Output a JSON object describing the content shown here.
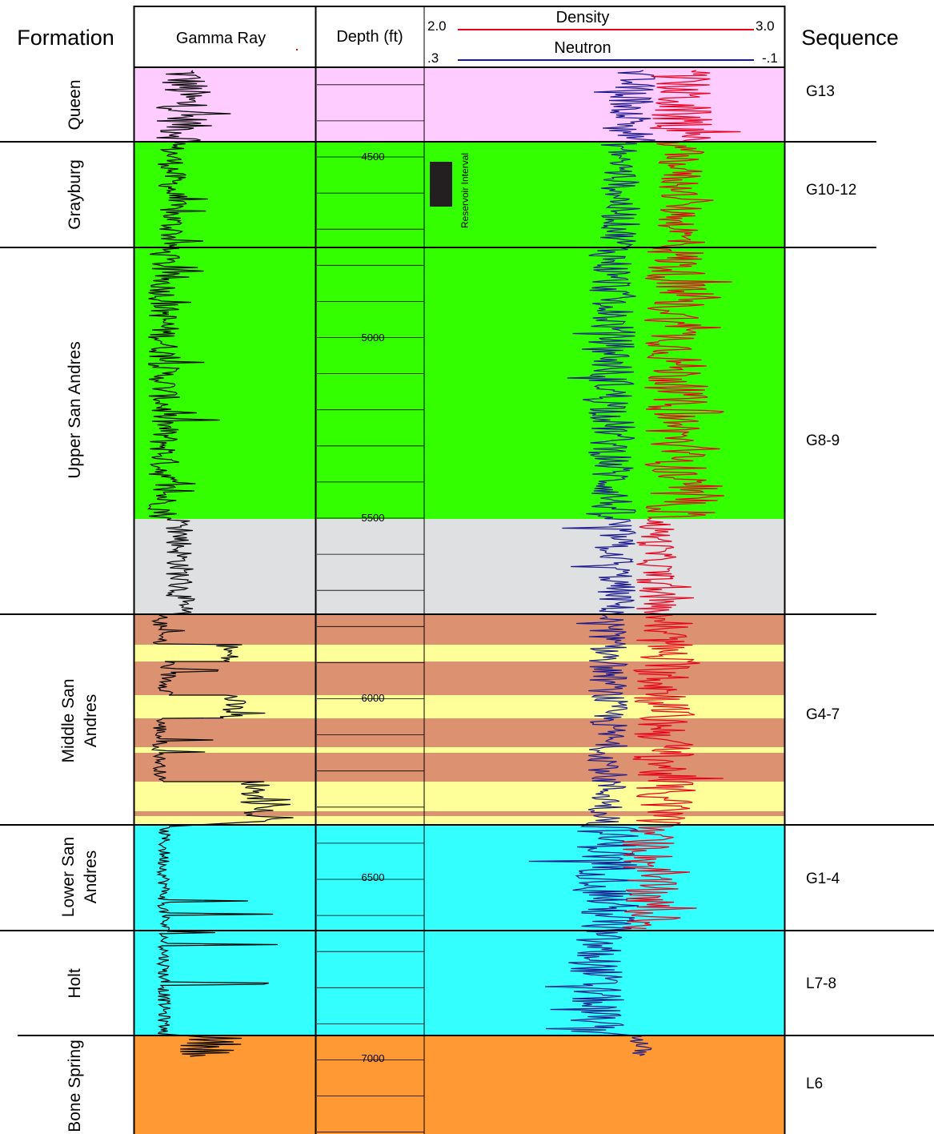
{
  "header": {
    "formation_title": "Formation",
    "gamma_title": "Gamma Ray",
    "depth_title": "Depth (ft)",
    "sequence_title": "Sequence",
    "density_label": "Density",
    "density_min": "2.0",
    "density_max": "3.0",
    "neutron_label": "Neutron",
    "neutron_min": ".3",
    "neutron_max": "-.1"
  },
  "colors": {
    "queen": "#ffccff",
    "green": "#33ff00",
    "gray": "#dfe0e2",
    "brown": "#dc9270",
    "yellow": "#ffff99",
    "cyan": "#33ffff",
    "orange": "#ff9933",
    "density_curve": "#e8001c",
    "neutron_curve": "#1a1a8c",
    "gamma_curve": "#000000"
  },
  "formations": [
    {
      "name": "Queen",
      "sequence": "G13"
    },
    {
      "name": "Grayburg",
      "sequence": "G10-12"
    },
    {
      "name": "Upper San Andres",
      "sequence": "G8-9"
    },
    {
      "name": "Middle San Andres",
      "sequence": "G4-7"
    },
    {
      "name": "Lower San Andres",
      "sequence": "G1-4"
    },
    {
      "name": "Holt",
      "sequence": "L7-8"
    },
    {
      "name": "Bone Spring",
      "sequence": "L6"
    }
  ],
  "depth_ticks": [
    "4500",
    "5000",
    "5500",
    "6000",
    "6500",
    "7000"
  ],
  "reservoir_label": "Reservoir Interval"
}
